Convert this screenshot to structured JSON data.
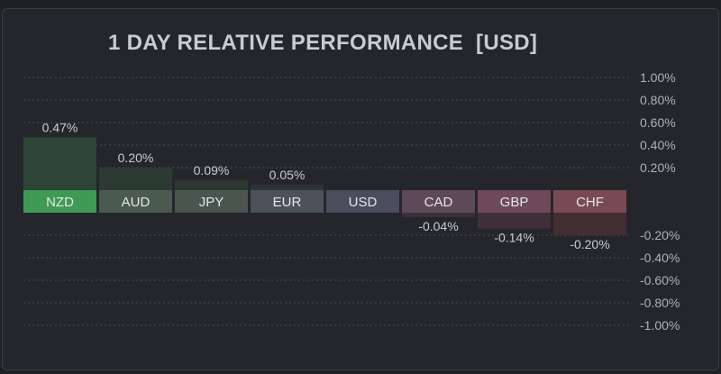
{
  "title": "1 DAY RELATIVE PERFORMANCE  [USD]",
  "colors": {
    "background": "#1f2125",
    "panel": "#24262b",
    "gridline": "#4a4d55",
    "text": "#c9cbd0",
    "axis_text": "#aeb1b8"
  },
  "chart_data": {
    "type": "bar",
    "title": "1 DAY RELATIVE PERFORMANCE  [USD]",
    "xlabel": "",
    "ylabel": "",
    "ylim": [
      -1.0,
      1.0
    ],
    "grid": true,
    "categories": [
      "NZD",
      "AUD",
      "JPY",
      "EUR",
      "USD",
      "CAD",
      "GBP",
      "CHF"
    ],
    "values": [
      0.47,
      0.2,
      0.09,
      0.05,
      0.0,
      -0.04,
      -0.14,
      -0.2
    ],
    "value_labels": [
      "0.47%",
      "0.20%",
      "0.09%",
      "0.05%",
      "",
      "-0.04%",
      "-0.14%",
      "-0.20%"
    ],
    "label_colors": [
      "#3f9a55",
      "#4a5a50",
      "#4a5550",
      "#4b525a",
      "#4a4d5c",
      "#5e4a56",
      "#6e4a58",
      "#7a4a54"
    ],
    "bar_colors": [
      "#2b4436",
      "#2d3a34",
      "#2c3633",
      "#2d3338",
      "#2c2e35",
      "#3a2f36",
      "#402f37",
      "#432e34"
    ],
    "y_ticks_upper": [
      "1.00%",
      "0.80%",
      "0.60%",
      "0.40%",
      "0.20%"
    ],
    "y_ticks_upper_values": [
      1.0,
      0.8,
      0.6,
      0.4,
      0.2
    ],
    "y_ticks_lower": [
      "-0.20%",
      "-0.40%",
      "-0.60%",
      "-0.80%",
      "-1.00%"
    ],
    "y_ticks_lower_values": [
      -0.2,
      -0.4,
      -0.6,
      -0.8,
      -1.0
    ]
  }
}
